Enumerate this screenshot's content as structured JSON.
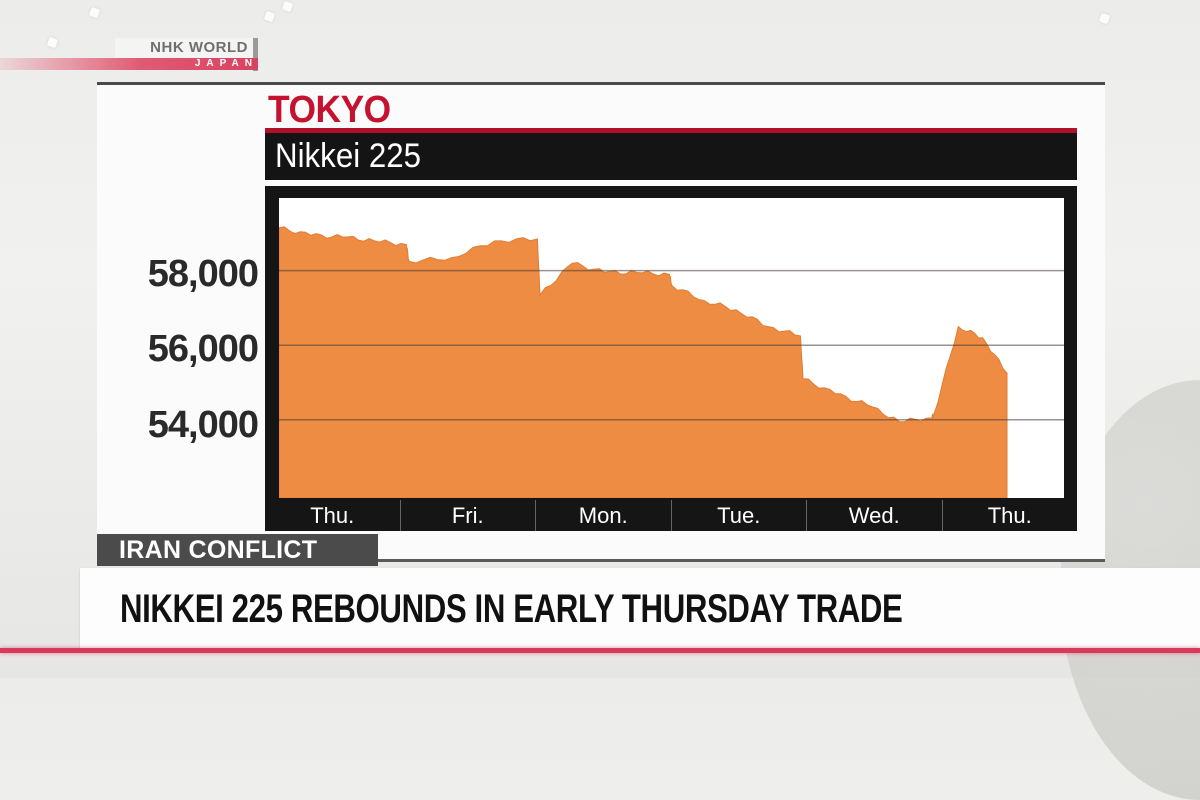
{
  "broadcaster": {
    "logo_main": "NHK WORLD",
    "logo_sub": "JAPAN"
  },
  "panel": {
    "city": "TOKYO",
    "index_name": "Nikkei 225"
  },
  "lower_third": {
    "topic_tag": "IRAN CONFLICT",
    "headline": "NIKKEI 225 REBOUNDS IN EARLY THURSDAY TRADE"
  },
  "colors": {
    "accent_red": "#c41230",
    "area_fill": "#ee8c44",
    "frame": "#151515",
    "ticker_pink": "#d73a5a"
  },
  "chart_data": {
    "type": "area",
    "title": "Nikkei 225",
    "subtitle": "TOKYO",
    "xlabel": "",
    "ylabel": "",
    "categories": [
      "Thu.",
      "Fri.",
      "Mon.",
      "Tue.",
      "Wed.",
      "Thu."
    ],
    "yticks": [
      "58,000",
      "56,000",
      "54,000"
    ],
    "ytick_values": [
      58000,
      56000,
      54000
    ],
    "ylim": [
      51900,
      59950
    ],
    "grid": true,
    "legend": "none",
    "series": [
      {
        "name": "Nikkei 225",
        "x": [
          "Thu open",
          "Thu",
          "Thu",
          "Thu",
          "Thu close",
          "Fri open",
          "Fri",
          "Fri",
          "Fri close",
          "Mon open",
          "Mon",
          "Mon",
          "Mon",
          "Mon close",
          "Tue open",
          "Tue",
          "Tue",
          "Tue",
          "Tue close",
          "Wed open",
          "Wed",
          "Wed",
          "Wed",
          "Wed close",
          "Thu open",
          "Thu",
          "Thu",
          "Thu latest"
        ],
        "values": [
          59150,
          58950,
          58900,
          58800,
          58700,
          58250,
          58350,
          58800,
          58850,
          57350,
          58200,
          57950,
          57950,
          57900,
          57600,
          57200,
          56950,
          56500,
          56250,
          55100,
          54700,
          54400,
          53950,
          54050,
          54150,
          56500,
          56200,
          55250
        ]
      }
    ]
  }
}
